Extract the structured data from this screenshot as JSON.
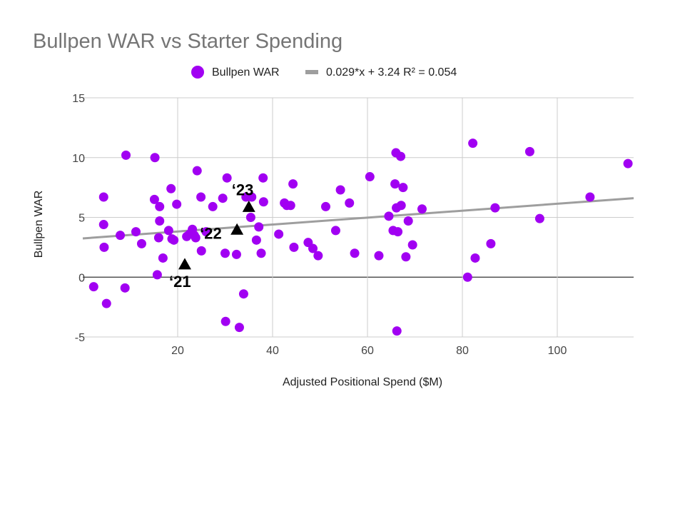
{
  "chart_data": {
    "type": "scatter",
    "title": "Bullpen WAR vs Starter Spending",
    "xlabel": "Adjusted Positional Spend ($M)",
    "ylabel": "Bullpen WAR",
    "xlim": [
      0,
      116
    ],
    "ylim": [
      -5,
      15
    ],
    "x_ticks": [
      20,
      40,
      60,
      80,
      100
    ],
    "y_ticks": [
      -5,
      0,
      5,
      10,
      15
    ],
    "grid": true,
    "legend_position": "top",
    "legend": [
      {
        "label": "Bullpen WAR",
        "kind": "point",
        "color": "#a100f2"
      },
      {
        "label": "0.029*x + 3.24 R² = 0.054",
        "kind": "trendline",
        "color": "#9e9e9e"
      }
    ],
    "series": [
      {
        "name": "Bullpen WAR",
        "color": "#a100f2",
        "points": [
          [
            2.3,
            -0.8
          ],
          [
            4.4,
            4.4
          ],
          [
            4.4,
            6.7
          ],
          [
            4.5,
            2.5
          ],
          [
            5.0,
            -2.2
          ],
          [
            7.9,
            3.5
          ],
          [
            8.9,
            -0.9
          ],
          [
            9.1,
            10.2
          ],
          [
            11.2,
            3.8
          ],
          [
            12.4,
            2.8
          ],
          [
            15.1,
            6.5
          ],
          [
            15.2,
            10.0
          ],
          [
            15.7,
            0.2
          ],
          [
            16.0,
            3.3
          ],
          [
            16.2,
            5.9
          ],
          [
            16.2,
            4.7
          ],
          [
            16.9,
            1.6
          ],
          [
            18.1,
            3.9
          ],
          [
            18.6,
            7.4
          ],
          [
            18.8,
            3.2
          ],
          [
            19.2,
            3.1
          ],
          [
            19.8,
            6.1
          ],
          [
            21.9,
            3.4
          ],
          [
            22.5,
            3.6
          ],
          [
            23.1,
            4.0
          ],
          [
            23.5,
            3.5
          ],
          [
            23.8,
            3.3
          ],
          [
            24.1,
            8.9
          ],
          [
            24.9,
            6.7
          ],
          [
            25.0,
            2.2
          ],
          [
            26.0,
            3.8
          ],
          [
            27.4,
            5.9
          ],
          [
            29.5,
            6.6
          ],
          [
            30.0,
            2.0
          ],
          [
            30.1,
            -3.7
          ],
          [
            30.4,
            8.3
          ],
          [
            32.4,
            1.9
          ],
          [
            33.0,
            -4.2
          ],
          [
            33.9,
            -1.4
          ],
          [
            34.4,
            6.7
          ],
          [
            35.4,
            5.0
          ],
          [
            35.6,
            6.7
          ],
          [
            36.6,
            3.1
          ],
          [
            37.1,
            4.2
          ],
          [
            37.6,
            2.0
          ],
          [
            38.0,
            8.3
          ],
          [
            38.1,
            6.3
          ],
          [
            41.3,
            3.6
          ],
          [
            42.5,
            6.2
          ],
          [
            43.0,
            6.0
          ],
          [
            43.8,
            6.0
          ],
          [
            44.3,
            7.8
          ],
          [
            44.5,
            2.5
          ],
          [
            47.5,
            2.9
          ],
          [
            48.5,
            2.4
          ],
          [
            49.6,
            1.8
          ],
          [
            51.2,
            5.9
          ],
          [
            53.3,
            3.9
          ],
          [
            54.3,
            7.3
          ],
          [
            56.2,
            6.2
          ],
          [
            57.3,
            2.0
          ],
          [
            60.5,
            8.4
          ],
          [
            62.4,
            1.8
          ],
          [
            64.5,
            5.1
          ],
          [
            65.4,
            3.9
          ],
          [
            65.8,
            7.8
          ],
          [
            66.0,
            10.4
          ],
          [
            66.1,
            5.8
          ],
          [
            66.2,
            -4.5
          ],
          [
            66.4,
            3.8
          ],
          [
            67.0,
            10.1
          ],
          [
            67.1,
            6.0
          ],
          [
            67.5,
            7.5
          ],
          [
            68.1,
            1.7
          ],
          [
            68.6,
            4.7
          ],
          [
            69.5,
            2.7
          ],
          [
            71.5,
            5.7
          ],
          [
            81.1,
            0.0
          ],
          [
            82.2,
            11.2
          ],
          [
            82.7,
            1.6
          ],
          [
            86.0,
            2.8
          ],
          [
            86.9,
            5.8
          ],
          [
            94.2,
            10.5
          ],
          [
            96.3,
            4.9
          ],
          [
            106.9,
            6.7
          ],
          [
            114.9,
            9.5
          ]
        ]
      }
    ],
    "trendline": {
      "slope": 0.029,
      "intercept": 3.24,
      "r2": 0.054
    },
    "annotations": [
      {
        "label": "‘21",
        "x": 21.5,
        "y": 1.1
      },
      {
        "label": "‘22",
        "x": 32.5,
        "y": 4.0
      },
      {
        "label": "‘23",
        "x": 35.0,
        "y": 5.9
      }
    ]
  }
}
